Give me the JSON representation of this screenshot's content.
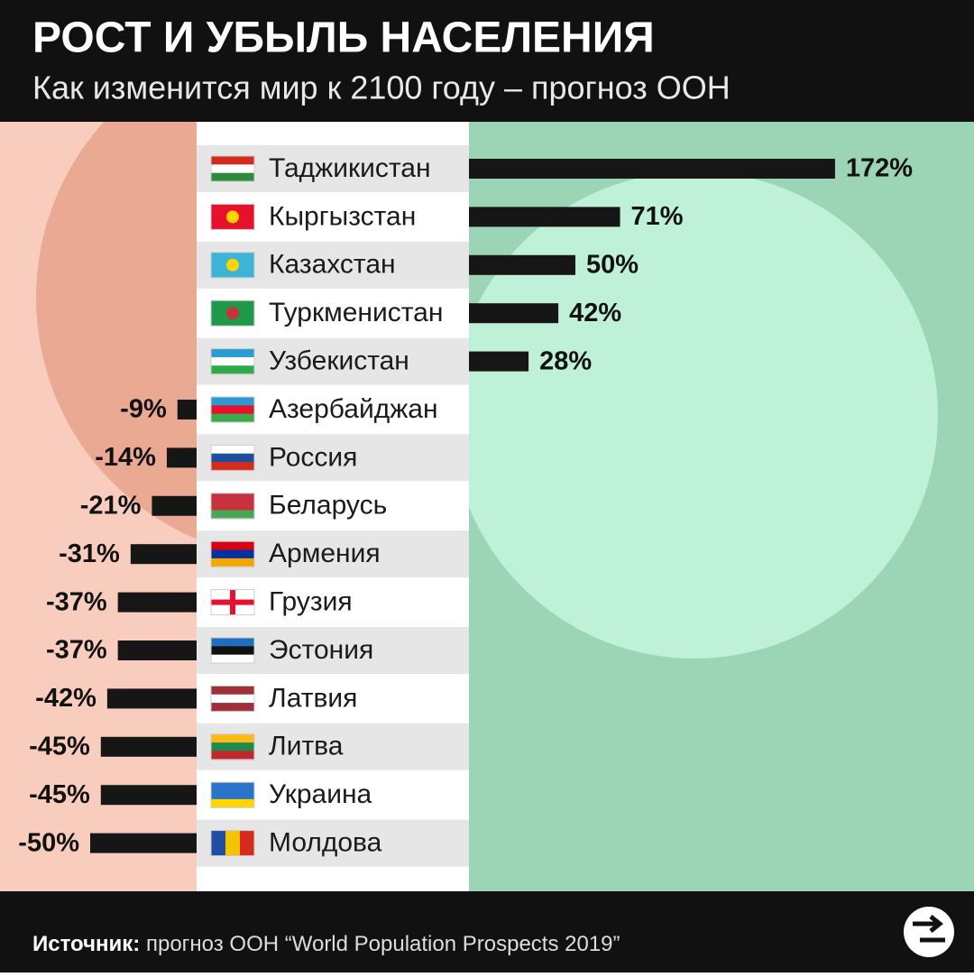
{
  "chart_data": {
    "type": "bar",
    "title": "РОСТ И УБЫЛЬ НАСЕЛЕНИЯ",
    "subtitle": "Как изменится мир к 2100 году – прогноз ООН",
    "categories": [
      "Таджикистан",
      "Кыргызстан",
      "Казахстан",
      "Туркменистан",
      "Узбекистан",
      "Азербайджан",
      "Россия",
      "Беларусь",
      "Армения",
      "Грузия",
      "Эстония",
      "Латвия",
      "Литва",
      "Украина",
      "Молдова"
    ],
    "values": [
      172,
      71,
      50,
      42,
      28,
      -9,
      -14,
      -21,
      -31,
      -37,
      -37,
      -42,
      -45,
      -45,
      -50
    ],
    "value_labels": [
      "172%",
      "71%",
      "50%",
      "42%",
      "28%",
      "-9%",
      "-14%",
      "-21%",
      "-31%",
      "-37%",
      "-37%",
      "-42%",
      "-45%",
      "-45%",
      "-50%"
    ],
    "color": "#161616",
    "source_label": "Источник:",
    "source_text": "прогноз ООН “World Population Prospects 2019”"
  }
}
